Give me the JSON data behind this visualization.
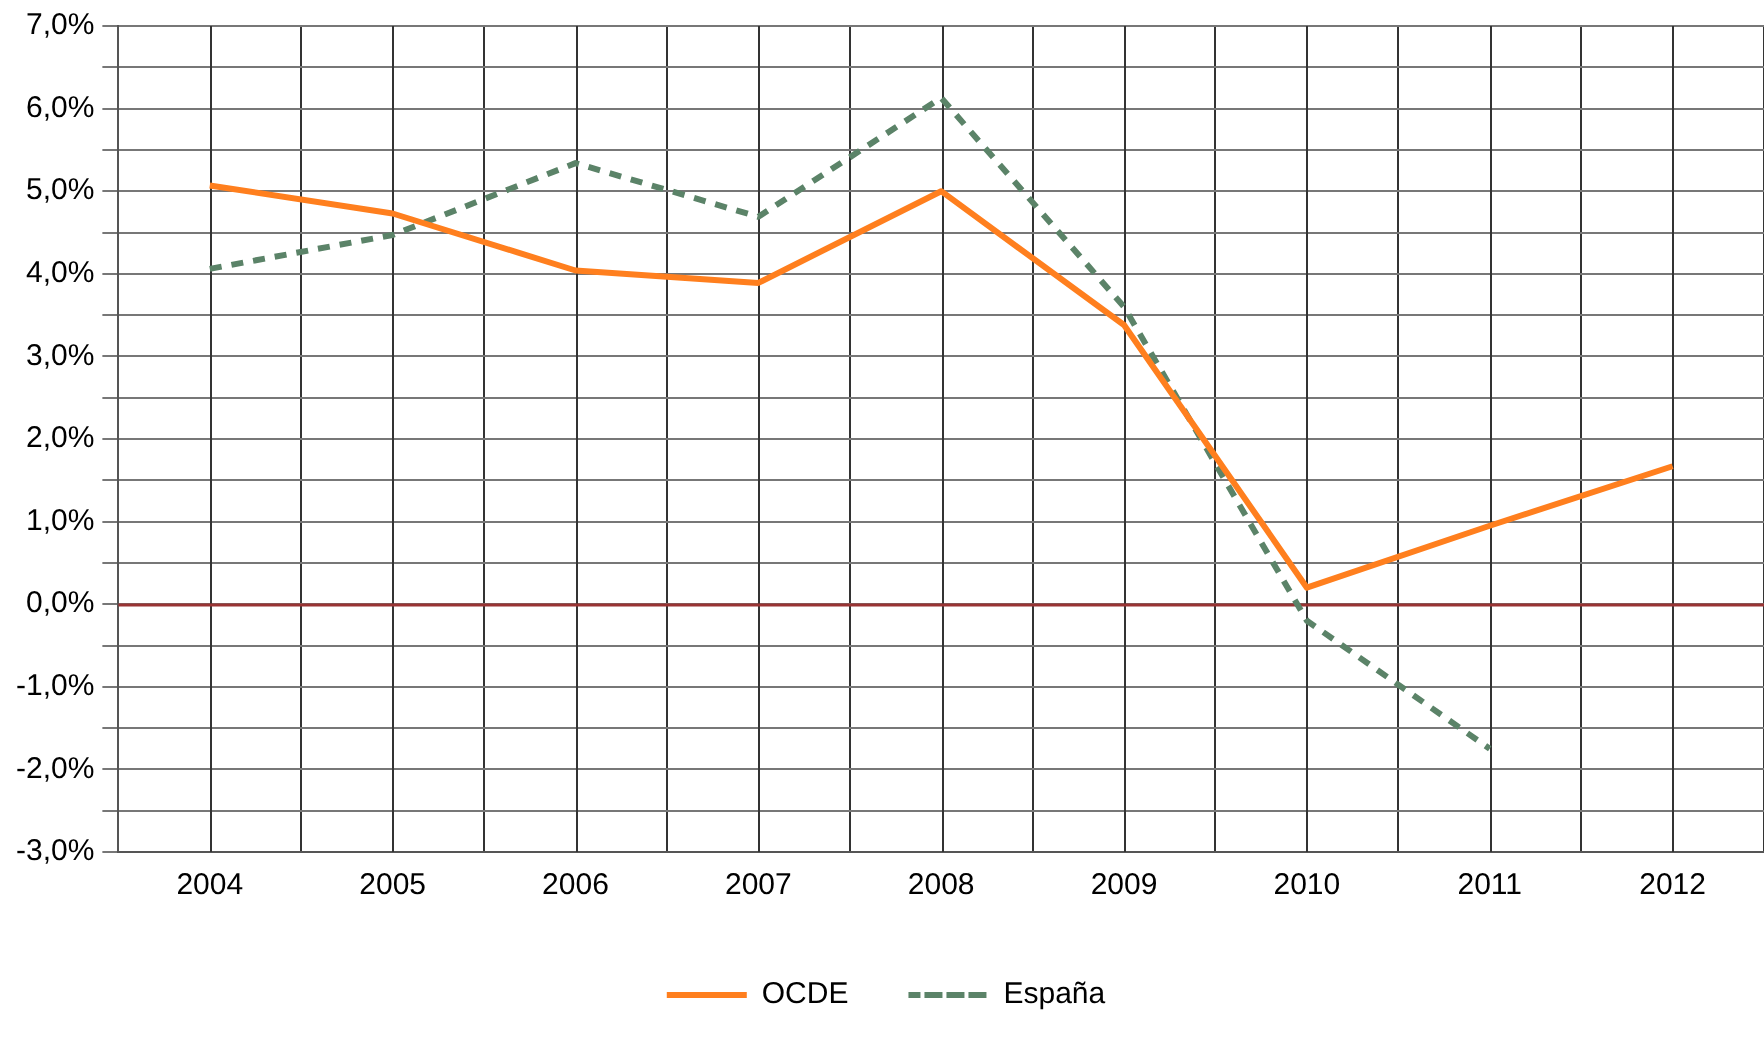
{
  "chart_data": {
    "type": "line",
    "categories": [
      "2004",
      "2005",
      "2006",
      "2007",
      "2008",
      "2009",
      "2010",
      "2011",
      "2012"
    ],
    "series": [
      {
        "name": "OCDE",
        "color": "#ff7f1e",
        "line_style": "solid",
        "values": [
          5.07,
          4.73,
          4.04,
          3.89,
          5.0,
          3.38,
          0.2,
          0.95,
          1.67
        ]
      },
      {
        "name": "España",
        "color": "#5b8368",
        "line_style": "dashed",
        "values": [
          4.06,
          4.47,
          5.34,
          4.69,
          6.13,
          3.6,
          -0.2,
          -1.75,
          null
        ]
      }
    ],
    "ylim": [
      -3,
      7
    ],
    "yticks": [
      {
        "value": -3,
        "label": "-3,0%"
      },
      {
        "value": -2.5,
        "label": null
      },
      {
        "value": -2,
        "label": "-2,0%"
      },
      {
        "value": -1.5,
        "label": null
      },
      {
        "value": -1,
        "label": "-1,0%"
      },
      {
        "value": -0.5,
        "label": null
      },
      {
        "value": 0,
        "label": "0,0%"
      },
      {
        "value": 0.5,
        "label": null
      },
      {
        "value": 1,
        "label": "1,0%"
      },
      {
        "value": 1.5,
        "label": null
      },
      {
        "value": 2,
        "label": "2,0%"
      },
      {
        "value": 2.5,
        "label": null
      },
      {
        "value": 3,
        "label": "3,0%"
      },
      {
        "value": 3.5,
        "label": null
      },
      {
        "value": 4,
        "label": "4,0%"
      },
      {
        "value": 4.5,
        "label": null
      },
      {
        "value": 5,
        "label": "5,0%"
      },
      {
        "value": 5.5,
        "label": null
      },
      {
        "value": 6,
        "label": "6,0%"
      },
      {
        "value": 6.5,
        "label": null
      },
      {
        "value": 7,
        "label": "7,0%"
      }
    ],
    "ref_lines": [
      {
        "axis": "y",
        "value": 0,
        "color": "#993333"
      }
    ],
    "grid": true,
    "legend": "bottom",
    "marker": "none"
  }
}
